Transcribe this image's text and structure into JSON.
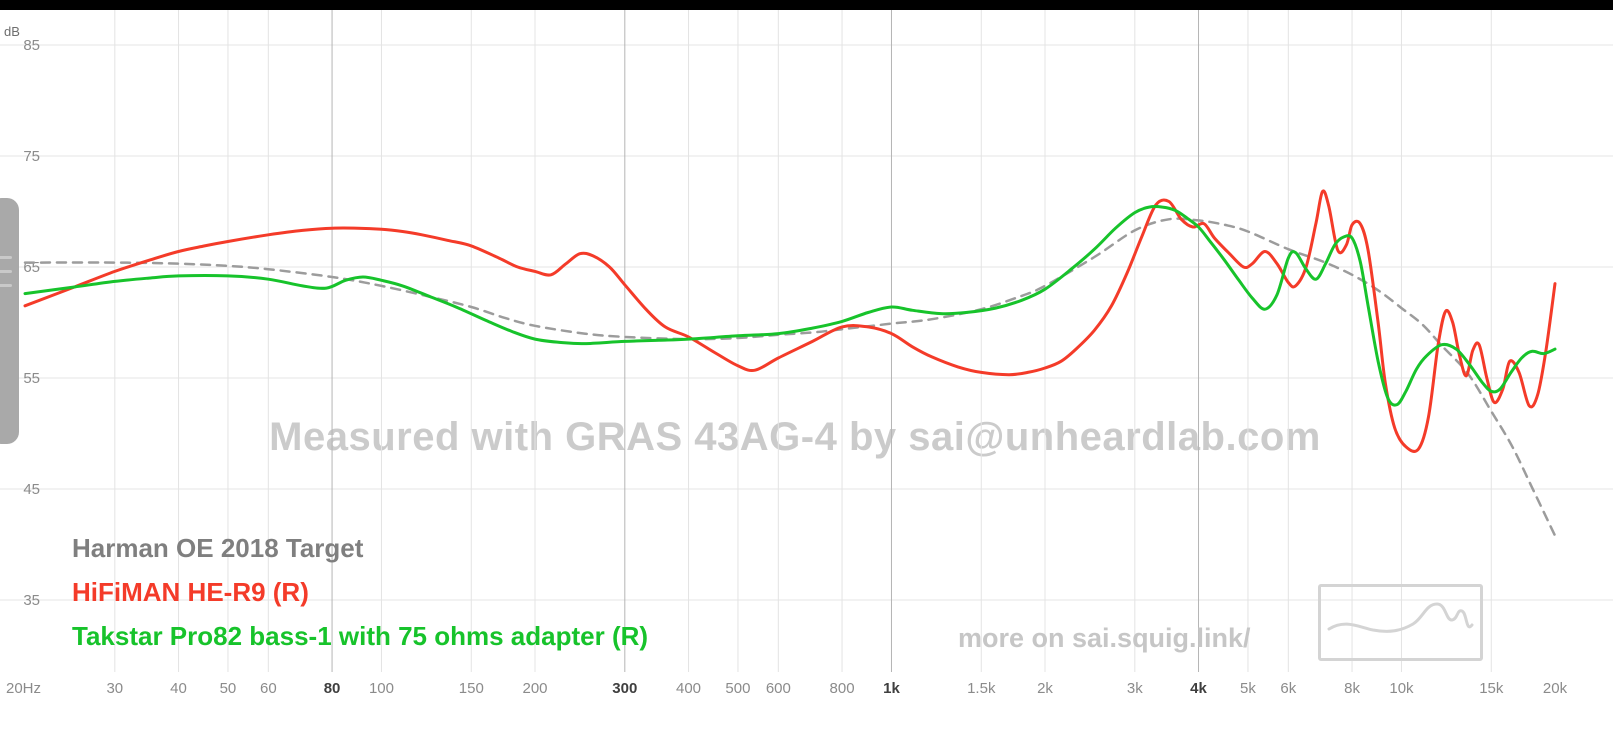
{
  "watermark": "Measured with GRAS 43AG-4 by sai@unheardlab.com",
  "promo": "more on sai.squig.link/",
  "y_axis_unit": "dB",
  "legend": {
    "items": [
      {
        "label": "Harman OE 2018 Target",
        "color": "#7f7f7f"
      },
      {
        "label": "HiFiMAN HE-R9 (R)",
        "color": "#f43b29"
      },
      {
        "label": "Takstar Pro82 bass-1 with 75 ohms adapter (R)",
        "color": "#17c32b"
      }
    ]
  },
  "chart_data": {
    "type": "line",
    "x_scale": "log",
    "xlim": [
      20,
      20000
    ],
    "ylim": [
      28,
      88
    ],
    "ylabel": "dB",
    "grid": true,
    "legend_position": "bottom-left",
    "y_ticks": [
      85,
      75,
      65,
      55,
      45,
      35
    ],
    "x_ticks": [
      {
        "label": "20Hz",
        "f": 20,
        "major": false,
        "line": false
      },
      {
        "label": "30",
        "f": 30,
        "major": false,
        "line": true
      },
      {
        "label": "40",
        "f": 40,
        "major": false,
        "line": true
      },
      {
        "label": "50",
        "f": 50,
        "major": false,
        "line": true
      },
      {
        "label": "60",
        "f": 60,
        "major": false,
        "line": true
      },
      {
        "label": "80",
        "f": 80,
        "major": true,
        "line": true
      },
      {
        "label": "100",
        "f": 100,
        "major": false,
        "line": true
      },
      {
        "label": "150",
        "f": 150,
        "major": false,
        "line": true
      },
      {
        "label": "200",
        "f": 200,
        "major": false,
        "line": true
      },
      {
        "label": "300",
        "f": 300,
        "major": true,
        "line": true
      },
      {
        "label": "400",
        "f": 400,
        "major": false,
        "line": true
      },
      {
        "label": "500",
        "f": 500,
        "major": false,
        "line": true
      },
      {
        "label": "600",
        "f": 600,
        "major": false,
        "line": true
      },
      {
        "label": "800",
        "f": 800,
        "major": false,
        "line": true
      },
      {
        "label": "1k",
        "f": 1000,
        "major": true,
        "line": true
      },
      {
        "label": "1.5k",
        "f": 1500,
        "major": false,
        "line": true
      },
      {
        "label": "2k",
        "f": 2000,
        "major": false,
        "line": true
      },
      {
        "label": "3k",
        "f": 3000,
        "major": false,
        "line": true
      },
      {
        "label": "4k",
        "f": 4000,
        "major": true,
        "line": true
      },
      {
        "label": "5k",
        "f": 5000,
        "major": false,
        "line": true
      },
      {
        "label": "6k",
        "f": 6000,
        "major": false,
        "line": true
      },
      {
        "label": "8k",
        "f": 8000,
        "major": false,
        "line": true
      },
      {
        "label": "10k",
        "f": 10000,
        "major": false,
        "line": true
      },
      {
        "label": "15k",
        "f": 15000,
        "major": false,
        "line": true
      },
      {
        "label": "20k",
        "f": 20000,
        "major": false,
        "line": false
      }
    ],
    "series": [
      {
        "name": "Harman OE 2018 Target",
        "color": "#9c9c9c",
        "dash": true,
        "width": 2.5,
        "points": [
          [
            20,
            65.4
          ],
          [
            30,
            65.4
          ],
          [
            40,
            65.3
          ],
          [
            50,
            65.1
          ],
          [
            60,
            64.8
          ],
          [
            80,
            64.1
          ],
          [
            100,
            63.3
          ],
          [
            125,
            62.3
          ],
          [
            150,
            61.4
          ],
          [
            175,
            60.4
          ],
          [
            200,
            59.7
          ],
          [
            250,
            59.0
          ],
          [
            300,
            58.7
          ],
          [
            400,
            58.5
          ],
          [
            500,
            58.6
          ],
          [
            600,
            58.9
          ],
          [
            700,
            59.1
          ],
          [
            800,
            59.4
          ],
          [
            1000,
            59.9
          ],
          [
            1200,
            60.3
          ],
          [
            1500,
            61.2
          ],
          [
            1800,
            62.4
          ],
          [
            2000,
            63.3
          ],
          [
            2500,
            65.9
          ],
          [
            3000,
            68.3
          ],
          [
            3500,
            69.3
          ],
          [
            4000,
            69.2
          ],
          [
            4500,
            68.8
          ],
          [
            5000,
            68.2
          ],
          [
            6000,
            66.6
          ],
          [
            7000,
            65.5
          ],
          [
            8000,
            64.3
          ],
          [
            9000,
            62.9
          ],
          [
            10000,
            61.3
          ],
          [
            11000,
            59.8
          ],
          [
            12000,
            57.9
          ],
          [
            13500,
            55.4
          ],
          [
            15000,
            52.0
          ],
          [
            16500,
            48.8
          ],
          [
            18000,
            45.2
          ],
          [
            20000,
            40.8
          ]
        ]
      },
      {
        "name": "HiFiMAN HE-R9 (R)",
        "color": "#f43b29",
        "dash": false,
        "width": 3,
        "points": [
          [
            20,
            61.5
          ],
          [
            25,
            63.2
          ],
          [
            30,
            64.6
          ],
          [
            35,
            65.6
          ],
          [
            40,
            66.4
          ],
          [
            45,
            66.9
          ],
          [
            50,
            67.3
          ],
          [
            60,
            67.9
          ],
          [
            70,
            68.3
          ],
          [
            80,
            68.5
          ],
          [
            90,
            68.5
          ],
          [
            100,
            68.4
          ],
          [
            110,
            68.2
          ],
          [
            120,
            67.9
          ],
          [
            135,
            67.4
          ],
          [
            150,
            66.9
          ],
          [
            170,
            65.8
          ],
          [
            185,
            65.0
          ],
          [
            200,
            64.6
          ],
          [
            215,
            64.3
          ],
          [
            230,
            65.3
          ],
          [
            245,
            66.2
          ],
          [
            260,
            66.0
          ],
          [
            280,
            65.0
          ],
          [
            300,
            63.4
          ],
          [
            330,
            61.2
          ],
          [
            360,
            59.6
          ],
          [
            400,
            58.7
          ],
          [
            450,
            57.3
          ],
          [
            500,
            56.1
          ],
          [
            540,
            55.7
          ],
          [
            600,
            56.8
          ],
          [
            700,
            58.3
          ],
          [
            800,
            59.6
          ],
          [
            900,
            59.6
          ],
          [
            1000,
            59.0
          ],
          [
            1100,
            57.8
          ],
          [
            1200,
            56.9
          ],
          [
            1350,
            56.0
          ],
          [
            1500,
            55.5
          ],
          [
            1700,
            55.3
          ],
          [
            1850,
            55.5
          ],
          [
            2000,
            55.9
          ],
          [
            2150,
            56.5
          ],
          [
            2300,
            57.6
          ],
          [
            2500,
            59.3
          ],
          [
            2700,
            61.5
          ],
          [
            2900,
            64.5
          ],
          [
            3100,
            67.8
          ],
          [
            3300,
            70.6
          ],
          [
            3500,
            70.9
          ],
          [
            3700,
            69.3
          ],
          [
            3900,
            68.6
          ],
          [
            4100,
            68.9
          ],
          [
            4300,
            67.6
          ],
          [
            4600,
            66.2
          ],
          [
            4900,
            65.0
          ],
          [
            5100,
            65.3
          ],
          [
            5400,
            66.4
          ],
          [
            5700,
            65.3
          ],
          [
            6000,
            63.6
          ],
          [
            6200,
            63.3
          ],
          [
            6500,
            65.0
          ],
          [
            6800,
            69.0
          ],
          [
            7000,
            71.8
          ],
          [
            7200,
            70.5
          ],
          [
            7500,
            66.5
          ],
          [
            7800,
            67.0
          ],
          [
            8000,
            68.8
          ],
          [
            8300,
            68.9
          ],
          [
            8600,
            66.5
          ],
          [
            9000,
            60.0
          ],
          [
            9300,
            54.5
          ],
          [
            9700,
            50.5
          ],
          [
            10200,
            48.8
          ],
          [
            10800,
            48.6
          ],
          [
            11300,
            51.5
          ],
          [
            11800,
            58.0
          ],
          [
            12200,
            61.0
          ],
          [
            12600,
            60.0
          ],
          [
            13000,
            57.0
          ],
          [
            13400,
            55.2
          ],
          [
            13800,
            57.5
          ],
          [
            14200,
            58.0
          ],
          [
            14700,
            55.0
          ],
          [
            15200,
            52.8
          ],
          [
            15800,
            54.0
          ],
          [
            16300,
            56.5
          ],
          [
            17000,
            55.5
          ],
          [
            17800,
            52.5
          ],
          [
            18500,
            53.5
          ],
          [
            19200,
            57.5
          ],
          [
            20000,
            63.5
          ]
        ]
      },
      {
        "name": "Takstar Pro82 bass-1 with 75 ohms adapter (R)",
        "color": "#17c32b",
        "dash": false,
        "width": 3,
        "points": [
          [
            20,
            62.6
          ],
          [
            25,
            63.2
          ],
          [
            30,
            63.7
          ],
          [
            35,
            64.0
          ],
          [
            40,
            64.2
          ],
          [
            50,
            64.2
          ],
          [
            60,
            63.9
          ],
          [
            70,
            63.3
          ],
          [
            78,
            63.1
          ],
          [
            85,
            63.8
          ],
          [
            92,
            64.1
          ],
          [
            100,
            63.8
          ],
          [
            110,
            63.3
          ],
          [
            125,
            62.3
          ],
          [
            140,
            61.4
          ],
          [
            160,
            60.2
          ],
          [
            180,
            59.2
          ],
          [
            200,
            58.5
          ],
          [
            225,
            58.2
          ],
          [
            250,
            58.1
          ],
          [
            300,
            58.3
          ],
          [
            350,
            58.4
          ],
          [
            400,
            58.5
          ],
          [
            500,
            58.8
          ],
          [
            600,
            59.0
          ],
          [
            700,
            59.5
          ],
          [
            800,
            60.1
          ],
          [
            900,
            60.9
          ],
          [
            1000,
            61.4
          ],
          [
            1100,
            61.1
          ],
          [
            1250,
            60.8
          ],
          [
            1400,
            60.9
          ],
          [
            1600,
            61.3
          ],
          [
            1800,
            62.0
          ],
          [
            2000,
            63.0
          ],
          [
            2250,
            64.8
          ],
          [
            2500,
            66.6
          ],
          [
            2750,
            68.5
          ],
          [
            3000,
            69.9
          ],
          [
            3200,
            70.4
          ],
          [
            3400,
            70.4
          ],
          [
            3600,
            70.1
          ],
          [
            3800,
            69.4
          ],
          [
            4000,
            68.6
          ],
          [
            4200,
            67.4
          ],
          [
            4500,
            65.6
          ],
          [
            4800,
            63.8
          ],
          [
            5100,
            62.2
          ],
          [
            5400,
            61.2
          ],
          [
            5700,
            62.5
          ],
          [
            6000,
            65.8
          ],
          [
            6200,
            66.3
          ],
          [
            6500,
            64.8
          ],
          [
            6800,
            63.9
          ],
          [
            7100,
            65.3
          ],
          [
            7400,
            67.0
          ],
          [
            7700,
            67.7
          ],
          [
            8000,
            67.6
          ],
          [
            8300,
            65.5
          ],
          [
            8600,
            61.5
          ],
          [
            9000,
            56.5
          ],
          [
            9400,
            53.2
          ],
          [
            9800,
            52.6
          ],
          [
            10200,
            53.8
          ],
          [
            10700,
            55.8
          ],
          [
            11200,
            57.0
          ],
          [
            12000,
            58.0
          ],
          [
            12800,
            57.6
          ],
          [
            13600,
            56.2
          ],
          [
            14400,
            54.6
          ],
          [
            15000,
            53.8
          ],
          [
            15600,
            54.0
          ],
          [
            16400,
            55.5
          ],
          [
            17200,
            56.8
          ],
          [
            18000,
            57.4
          ],
          [
            19000,
            57.2
          ],
          [
            20000,
            57.6
          ]
        ]
      }
    ]
  }
}
